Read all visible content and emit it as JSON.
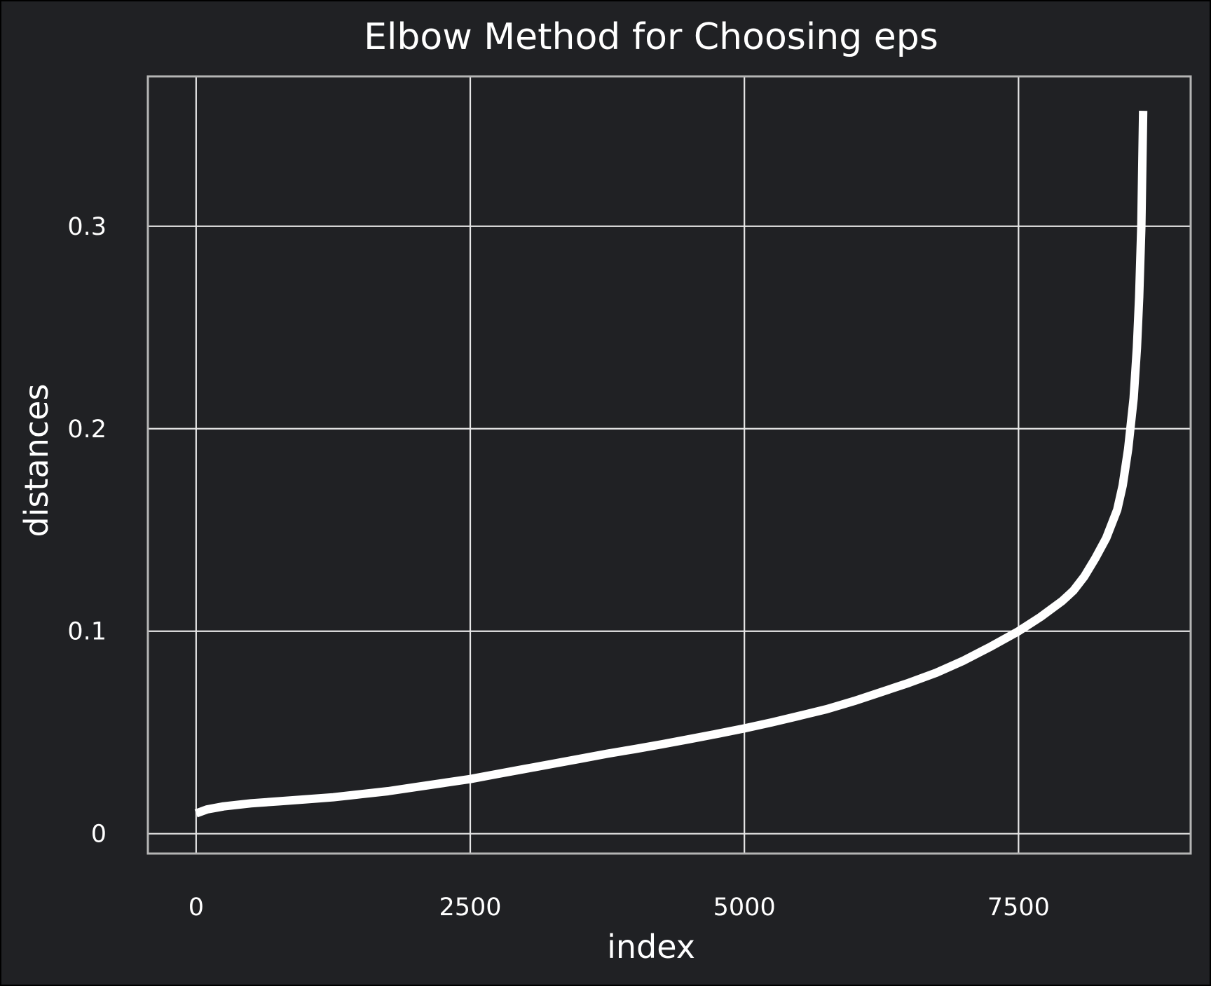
{
  "chart_data": {
    "type": "line",
    "title": "Elbow Method for Choosing eps",
    "xlabel": "index",
    "ylabel": "distances",
    "x_ticks": [
      0,
      2500,
      5000,
      7500
    ],
    "x_tick_labels": [
      "0",
      "2500",
      "5000",
      "7500"
    ],
    "y_ticks": [
      0,
      0.1,
      0.2,
      0.3
    ],
    "y_tick_labels": [
      "0",
      "0.1",
      "0.2",
      "0.3"
    ],
    "xlim": [
      -440,
      9070
    ],
    "ylim": [
      -0.0098,
      0.374
    ],
    "grid": true,
    "series": [
      {
        "x": [
          0,
          100,
          250,
          500,
          750,
          1000,
          1250,
          1500,
          1750,
          2000,
          2250,
          2500,
          2750,
          3000,
          3250,
          3500,
          3750,
          4000,
          4250,
          4500,
          4750,
          5000,
          5250,
          5500,
          5750,
          6000,
          6250,
          6500,
          6750,
          7000,
          7250,
          7500,
          7700,
          7900,
          8000,
          8100,
          8200,
          8300,
          8400,
          8450,
          8500,
          8550,
          8580,
          8600,
          8620,
          8630,
          8637
        ],
        "y": [
          0.01,
          0.012,
          0.0135,
          0.015,
          0.016,
          0.017,
          0.018,
          0.0195,
          0.021,
          0.023,
          0.025,
          0.027,
          0.0295,
          0.032,
          0.0345,
          0.037,
          0.0395,
          0.0418,
          0.0442,
          0.0467,
          0.0493,
          0.052,
          0.055,
          0.0582,
          0.0615,
          0.0655,
          0.07,
          0.0745,
          0.0795,
          0.0855,
          0.0925,
          0.1,
          0.107,
          0.115,
          0.12,
          0.127,
          0.136,
          0.146,
          0.16,
          0.172,
          0.19,
          0.215,
          0.24,
          0.265,
          0.3,
          0.335,
          0.357
        ]
      }
    ],
    "colors": {
      "background": "#202124",
      "figure_border": "#000000",
      "grid": "#e6e6e6",
      "spine": "#b5b5b5",
      "line": "#ffffff",
      "text": "#ffffff"
    }
  }
}
